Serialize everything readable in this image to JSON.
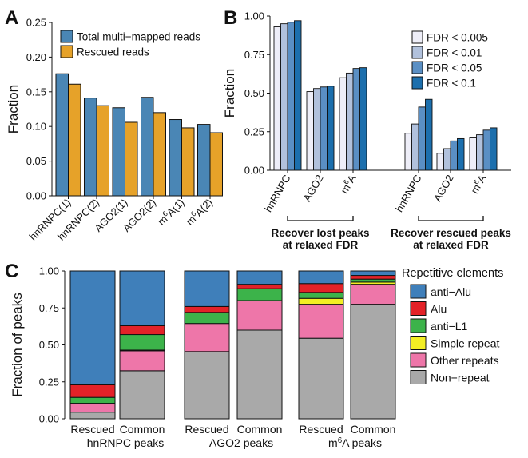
{
  "chart_data": [
    {
      "panel": "A",
      "type": "bar",
      "ylabel": "Fraction",
      "xlabel": "",
      "ylim": [
        0,
        0.25
      ],
      "yticks": [
        "0.00",
        "0.05",
        "0.10",
        "0.15",
        "0.20",
        "0.25"
      ],
      "categories": [
        "hnRNPC(1)",
        "hnRNPC(2)",
        "AGO2(1)",
        "AGO2(2)",
        "m6A(1)",
        "m6A(2)"
      ],
      "legend": "top-left",
      "series": [
        {
          "name": "Total multi−mapped reads",
          "color": "#4a86b5",
          "values": [
            0.176,
            0.141,
            0.127,
            0.142,
            0.11,
            0.103
          ]
        },
        {
          "name": "Rescued reads",
          "color": "#e6a229",
          "values": [
            0.161,
            0.13,
            0.106,
            0.12,
            0.098,
            0.091
          ]
        }
      ]
    },
    {
      "panel": "B",
      "type": "bar",
      "ylabel": "Fraction",
      "xlabel": "",
      "ylim": [
        0,
        1.0
      ],
      "yticks": [
        "0.00",
        "0.25",
        "0.50",
        "0.75",
        "1.00"
      ],
      "legend": "top-right",
      "series": [
        {
          "name": "FDR < 0.005",
          "color": "#eeeef8"
        },
        {
          "name": "FDR < 0.01",
          "color": "#b1c1dc"
        },
        {
          "name": "FDR < 0.05",
          "color": "#5a8fc4"
        },
        {
          "name": "FDR < 0.1",
          "color": "#1c6fad"
        }
      ],
      "groups": [
        {
          "label": "Recover lost peaks\nat relaxed FDR",
          "categories": [
            "hnRNPC",
            "AGO2",
            "m6A"
          ],
          "values": [
            [
              0.93,
              0.95,
              0.96,
              0.97
            ],
            [
              0.51,
              0.53,
              0.54,
              0.545
            ],
            [
              0.6,
              0.63,
              0.66,
              0.665
            ]
          ]
        },
        {
          "label": "Recover rescued peaks\nat relaxed FDR",
          "categories": [
            "hnRNPC",
            "AGO2",
            "m6A"
          ],
          "values": [
            [
              0.24,
              0.3,
              0.41,
              0.46
            ],
            [
              0.11,
              0.14,
              0.19,
              0.205
            ],
            [
              0.21,
              0.23,
              0.26,
              0.275
            ]
          ]
        }
      ]
    },
    {
      "panel": "C",
      "type": "bar",
      "stacked": true,
      "ylabel": "Fraction of peaks",
      "xlabel": "",
      "ylim": [
        0,
        1.0
      ],
      "yticks": [
        "0.00",
        "0.25",
        "0.50",
        "0.75",
        "1.00"
      ],
      "legend_title": "Repetitive elements",
      "legend": "right",
      "series": [
        {
          "name": "Non−repeat",
          "color": "#a9a9a9"
        },
        {
          "name": "Other repeats",
          "color": "#ee76a9"
        },
        {
          "name": "Simple repeat",
          "color": "#f3ee24"
        },
        {
          "name": "anti−L1",
          "color": "#3cb34a"
        },
        {
          "name": "Alu",
          "color": "#e32228"
        },
        {
          "name": "anti−Alu",
          "color": "#3f7fba"
        }
      ],
      "legend_order": [
        "anti−Alu",
        "Alu",
        "anti−L1",
        "Simple repeat",
        "Other repeats",
        "Non−repeat"
      ],
      "groups": [
        {
          "label": "hnRNPC peaks",
          "bars": [
            {
              "label": "Rescued",
              "values": [
                0.045,
                0.06,
                0.0,
                0.04,
                0.085,
                0.77
              ]
            },
            {
              "label": "Common",
              "values": [
                0.325,
                0.135,
                0.005,
                0.105,
                0.06,
                0.37
              ]
            }
          ]
        },
        {
          "label": "AGO2 peaks",
          "bars": [
            {
              "label": "Rescued",
              "values": [
                0.455,
                0.19,
                0.0,
                0.075,
                0.04,
                0.24
              ]
            },
            {
              "label": "Common",
              "values": [
                0.6,
                0.2,
                0.0,
                0.08,
                0.03,
                0.09
              ]
            }
          ]
        },
        {
          "label": "m6A peaks",
          "bars": [
            {
              "label": "Rescued",
              "values": [
                0.545,
                0.23,
                0.04,
                0.04,
                0.06,
                0.085
              ]
            },
            {
              "label": "Common",
              "values": [
                0.775,
                0.135,
                0.015,
                0.02,
                0.025,
                0.03
              ]
            }
          ]
        }
      ]
    }
  ]
}
